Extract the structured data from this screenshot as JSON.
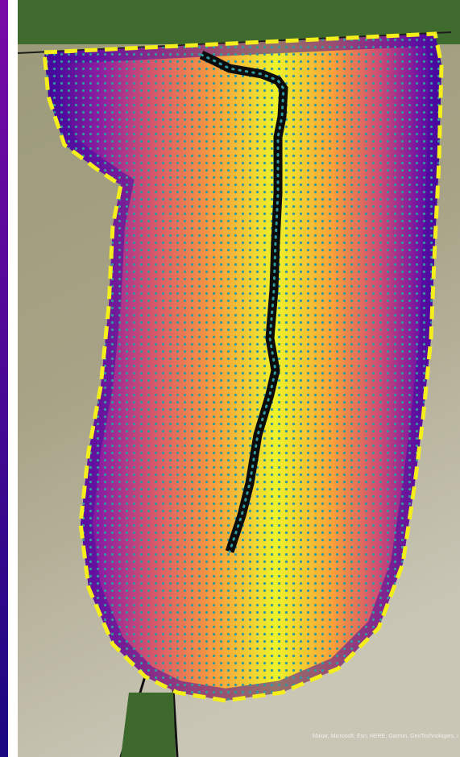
{
  "attribution": "Maxar, Microsoft, Esri, HERE, Garmin, GeoTechnologies, I"
}
